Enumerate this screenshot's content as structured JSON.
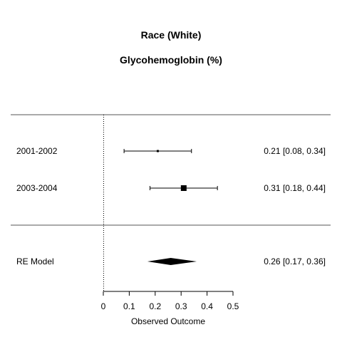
{
  "chart_data": {
    "type": "forest",
    "title": "Race (White)",
    "subtitle": "Glycohemoglobin (%)",
    "xlabel": "Observed Outcome",
    "xlim": [
      0,
      0.5
    ],
    "xticks": [
      "0",
      "0.1",
      "0.2",
      "0.3",
      "0.4",
      "0.5"
    ],
    "xtick_values": [
      0,
      0.1,
      0.2,
      0.3,
      0.4,
      0.5
    ],
    "reference_line": 0,
    "studies": [
      {
        "label": "2001-2002",
        "estimate": 0.21,
        "lower": 0.08,
        "upper": 0.34,
        "weight": 0.1,
        "text": "0.21 [0.08, 0.34]"
      },
      {
        "label": "2003-2004",
        "estimate": 0.31,
        "lower": 0.18,
        "upper": 0.44,
        "weight": 1.0,
        "text": "0.31 [0.18, 0.44]"
      }
    ],
    "summary": {
      "label": "RE Model",
      "estimate": 0.26,
      "lower": 0.17,
      "upper": 0.36,
      "text": "0.26 [0.17, 0.36]"
    }
  }
}
